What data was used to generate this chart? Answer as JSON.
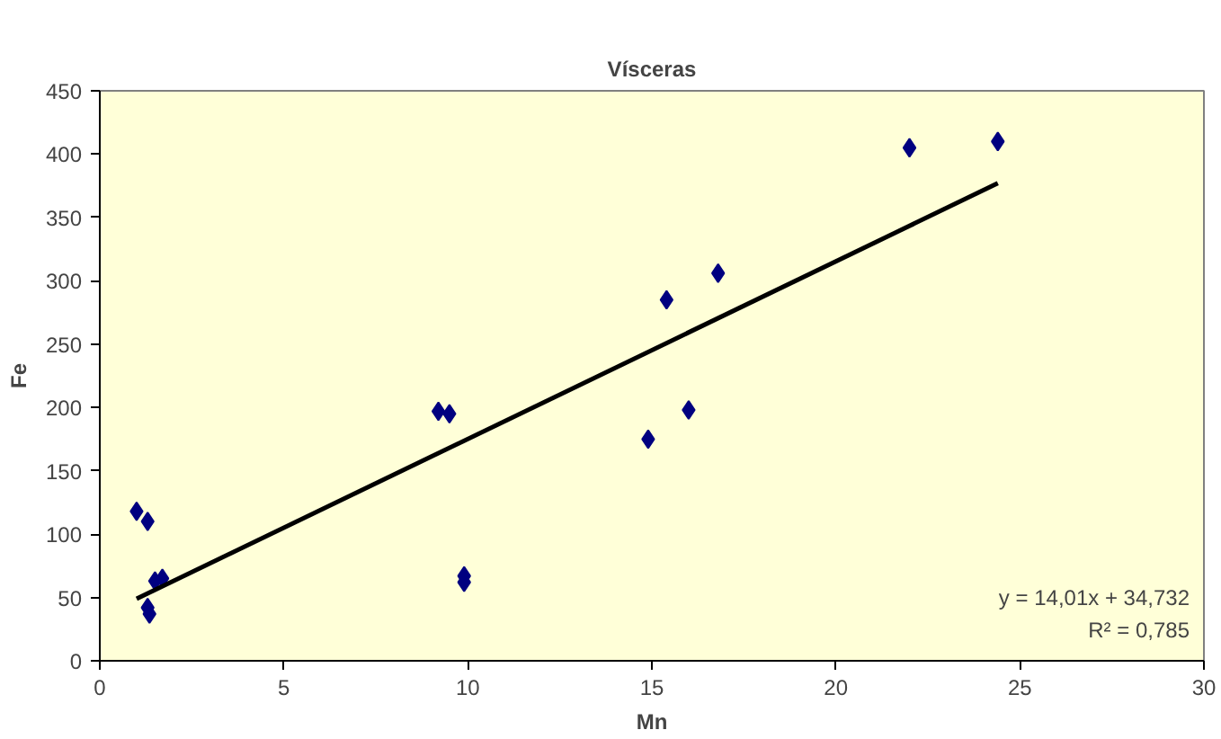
{
  "chart_data": {
    "type": "scatter",
    "title": "Vísceras",
    "xlabel": "Mn",
    "ylabel": "Fe",
    "xlim": [
      0,
      30
    ],
    "xticks": [
      0,
      5,
      10,
      15,
      20,
      25,
      30
    ],
    "ylim": [
      0,
      450
    ],
    "yticks": [
      0,
      50,
      100,
      150,
      200,
      250,
      300,
      350,
      400,
      450
    ],
    "grid": false,
    "series": [
      {
        "marker": "diamond",
        "color": "#000080",
        "x": [
          1.0,
          1.3,
          1.3,
          1.35,
          1.5,
          1.7,
          9.2,
          9.5,
          9.9,
          9.9,
          14.9,
          15.4,
          16.0,
          16.8,
          22.0,
          24.4
        ],
        "values": [
          118,
          110,
          42,
          37,
          63,
          65,
          197,
          195,
          67,
          62,
          175,
          285,
          198,
          306,
          405,
          410
        ]
      },
      {
        "type": "line",
        "color": "#000000",
        "x": [
          1.0,
          24.4
        ],
        "values": [
          49,
          377
        ]
      }
    ],
    "annotations": [
      "y = 14,01x + 34,732",
      "R² = 0,785"
    ]
  }
}
